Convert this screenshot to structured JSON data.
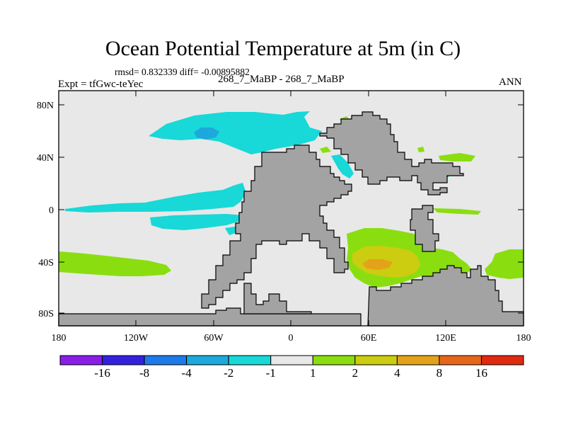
{
  "title": "Ocean Potential Temperature at 5m (in C)",
  "stats": "rmsd= 0.832339 diff= -0.00895882",
  "case_label": "268_7_MaBP - 268_7_MaBP",
  "expt_label": "Expt = tfGwc-teYec",
  "season": "ANN",
  "colors": {
    "land": "#a3a3a3",
    "ocean_neutral": "#e8e8e8",
    "cyan_anomaly": "#18d8d8",
    "blue_anomaly": "#1ea8dc",
    "green_anomaly": "#8ade10",
    "yellow_anomaly": "#cccc10",
    "orange_anomaly": "#e4a21a"
  },
  "map": {
    "lat_ticks": [
      "80N",
      "40N",
      "0",
      "40S",
      "80S"
    ],
    "lon_ticks": [
      "180",
      "120W",
      "60W",
      "0",
      "60E",
      "120E",
      "180"
    ]
  },
  "colorbar": {
    "colors": [
      "#8a1de8",
      "#3322dd",
      "#1e7ae8",
      "#1ea8dc",
      "#18d8d8",
      "#e8e8e8",
      "#8ade10",
      "#cccc10",
      "#e4a21a",
      "#e56618",
      "#e02a10"
    ],
    "labels": [
      "-16",
      "-8",
      "-4",
      "-2",
      "-1",
      "1",
      "2",
      "4",
      "8",
      "16"
    ]
  }
}
